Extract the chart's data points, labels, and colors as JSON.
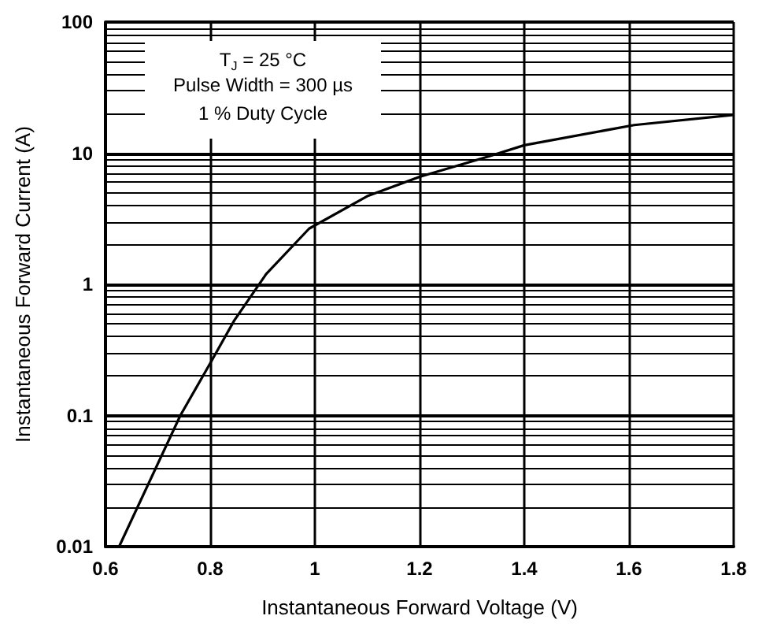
{
  "chart_data": {
    "type": "line",
    "xlabel": "Instantaneous Forward Voltage (V)",
    "ylabel": "Instantaneous Forward Current (A)",
    "annotations": [
      "T$_{J}$ = 25 °C",
      "Pulse Width = 300 µs",
      "1 % Duty Cycle"
    ],
    "series": [
      {
        "color": "#000000",
        "x": [
          0.626,
          0.743,
          0.8,
          0.846,
          0.907,
          0.989,
          1.1,
          1.2,
          1.33,
          1.4,
          1.61,
          1.8
        ],
        "values": [
          0.01,
          0.1,
          0.25,
          0.53,
          1.2,
          2.66,
          4.7,
          6.6,
          9.4,
          11.5,
          16.4,
          19.6
        ]
      }
    ],
    "xlim": [
      0.6,
      1.8
    ],
    "xticks": [
      0.6,
      0.8,
      1.0,
      1.2,
      1.4,
      1.6,
      1.8
    ],
    "ylim": [
      0.01,
      100
    ],
    "yticks": [
      0.01,
      0.1,
      1,
      10,
      100
    ],
    "log": "y",
    "grid": true,
    "marker": "none",
    "line_style": "solid"
  }
}
